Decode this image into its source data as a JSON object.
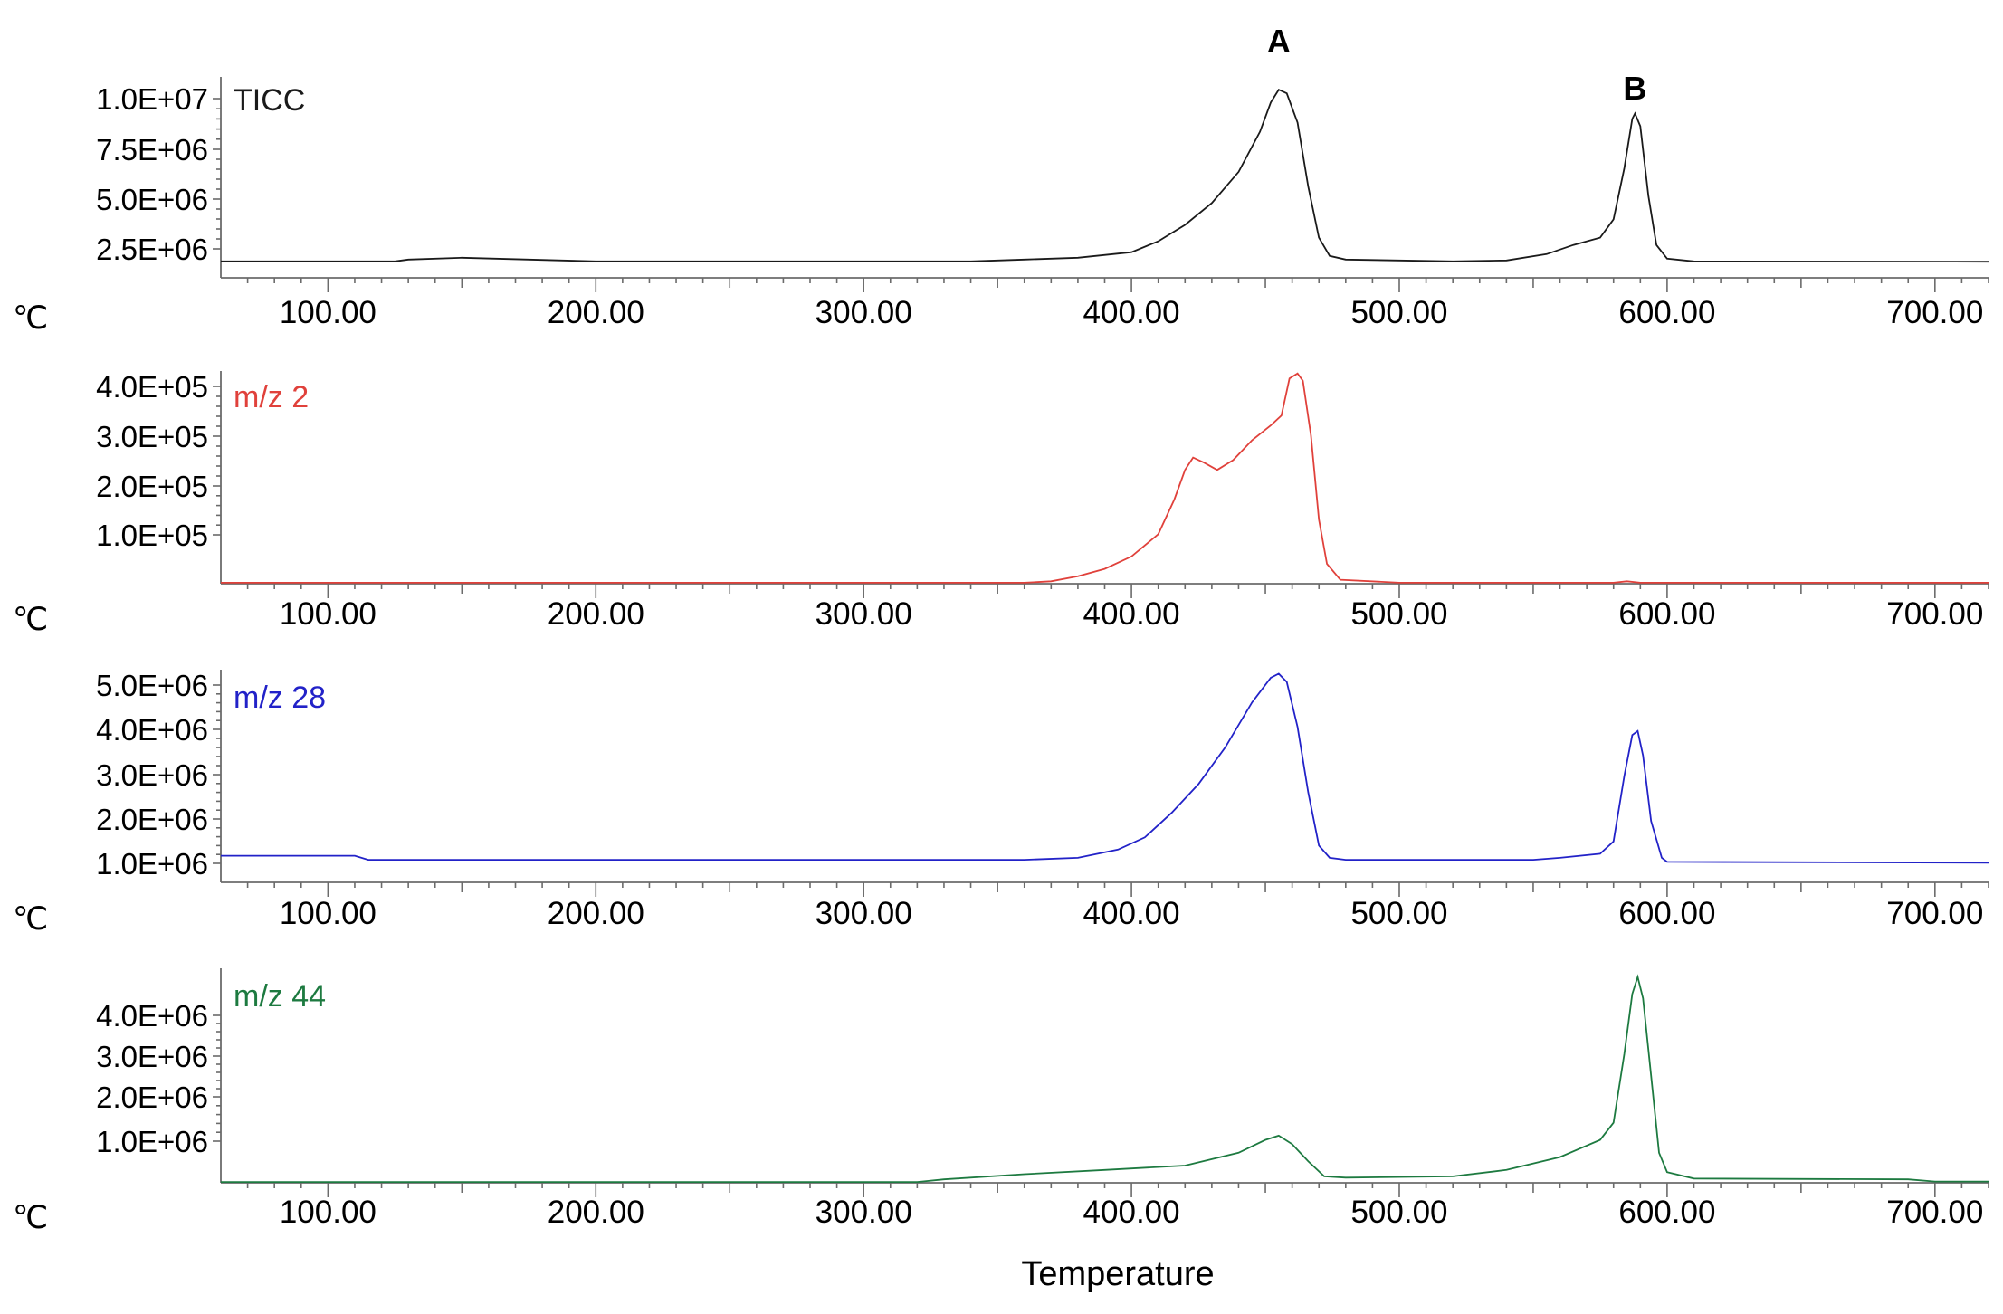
{
  "chart_data": {
    "type": "line",
    "xlabel": "Temperature",
    "x_unit": "℃",
    "xlim": [
      60,
      720
    ],
    "x_ticks": [
      "100.00",
      "200.00",
      "300.00",
      "400.00",
      "500.00",
      "600.00",
      "700.00"
    ],
    "peak_annotations": [
      {
        "label": "A",
        "x": 455
      },
      {
        "label": "B",
        "x": 588
      }
    ],
    "panels": [
      {
        "label": "TICC",
        "color": "#1a1a1a",
        "ylim": [
          0,
          11000000
        ],
        "y_ticks": [
          "1.0E+07",
          "7.5E+06",
          "5.0E+06",
          "2.5E+06"
        ],
        "points": [
          [
            60,
            900000
          ],
          [
            125,
            900000
          ],
          [
            130,
            1000000
          ],
          [
            150,
            1100000
          ],
          [
            175,
            1000000
          ],
          [
            200,
            900000
          ],
          [
            340,
            900000
          ],
          [
            360,
            1000000
          ],
          [
            380,
            1100000
          ],
          [
            400,
            1400000
          ],
          [
            410,
            2000000
          ],
          [
            420,
            2900000
          ],
          [
            430,
            4100000
          ],
          [
            440,
            5800000
          ],
          [
            448,
            8000000
          ],
          [
            452,
            9600000
          ],
          [
            455,
            10300000
          ],
          [
            458,
            10100000
          ],
          [
            462,
            8500000
          ],
          [
            466,
            5000000
          ],
          [
            470,
            2200000
          ],
          [
            474,
            1200000
          ],
          [
            480,
            1000000
          ],
          [
            520,
            900000
          ],
          [
            540,
            950000
          ],
          [
            555,
            1300000
          ],
          [
            565,
            1800000
          ],
          [
            575,
            2200000
          ],
          [
            580,
            3200000
          ],
          [
            584,
            6000000
          ],
          [
            587,
            8700000
          ],
          [
            588,
            9000000
          ],
          [
            590,
            8300000
          ],
          [
            593,
            4500000
          ],
          [
            596,
            1800000
          ],
          [
            600,
            1050000
          ],
          [
            610,
            900000
          ],
          [
            720,
            880000
          ]
        ]
      },
      {
        "label": "m/z 2",
        "color": "#e0413b",
        "ylim": [
          0,
          430000
        ],
        "y_ticks": [
          "4.0E+05",
          "3.0E+05",
          "2.0E+05",
          "1.0E+05"
        ],
        "points": [
          [
            60,
            2000
          ],
          [
            360,
            2000
          ],
          [
            370,
            5000
          ],
          [
            380,
            15000
          ],
          [
            390,
            30000
          ],
          [
            400,
            55000
          ],
          [
            410,
            100000
          ],
          [
            416,
            170000
          ],
          [
            420,
            230000
          ],
          [
            423,
            255000
          ],
          [
            427,
            245000
          ],
          [
            432,
            230000
          ],
          [
            438,
            250000
          ],
          [
            445,
            290000
          ],
          [
            452,
            320000
          ],
          [
            456,
            340000
          ],
          [
            459,
            415000
          ],
          [
            462,
            425000
          ],
          [
            464,
            410000
          ],
          [
            467,
            300000
          ],
          [
            470,
            130000
          ],
          [
            473,
            40000
          ],
          [
            478,
            8000
          ],
          [
            500,
            2000
          ],
          [
            580,
            2000
          ],
          [
            585,
            5000
          ],
          [
            590,
            2000
          ],
          [
            720,
            2000
          ]
        ]
      },
      {
        "label": "m/z 28",
        "color": "#2222c8",
        "ylim": [
          0,
          5200000
        ],
        "y_ticks": [
          "5.0E+06",
          "4.0E+06",
          "3.0E+06",
          "2.0E+06",
          "1.0E+06"
        ],
        "points": [
          [
            60,
            650000
          ],
          [
            110,
            650000
          ],
          [
            115,
            550000
          ],
          [
            360,
            550000
          ],
          [
            380,
            600000
          ],
          [
            395,
            800000
          ],
          [
            405,
            1100000
          ],
          [
            415,
            1700000
          ],
          [
            425,
            2400000
          ],
          [
            435,
            3300000
          ],
          [
            445,
            4400000
          ],
          [
            452,
            5000000
          ],
          [
            455,
            5100000
          ],
          [
            458,
            4900000
          ],
          [
            462,
            3800000
          ],
          [
            466,
            2200000
          ],
          [
            470,
            900000
          ],
          [
            474,
            600000
          ],
          [
            480,
            550000
          ],
          [
            550,
            550000
          ],
          [
            560,
            600000
          ],
          [
            575,
            700000
          ],
          [
            580,
            1000000
          ],
          [
            584,
            2600000
          ],
          [
            587,
            3600000
          ],
          [
            589,
            3700000
          ],
          [
            591,
            3100000
          ],
          [
            594,
            1500000
          ],
          [
            598,
            600000
          ],
          [
            600,
            500000
          ],
          [
            720,
            480000
          ]
        ]
      },
      {
        "label": "m/z 44",
        "color": "#1d7a40",
        "ylim": [
          0,
          5000000
        ],
        "y_ticks": [
          "4.0E+06",
          "3.0E+06",
          "2.0E+06",
          "1.0E+06"
        ],
        "points": [
          [
            60,
            20000
          ],
          [
            320,
            20000
          ],
          [
            330,
            80000
          ],
          [
            360,
            200000
          ],
          [
            390,
            300000
          ],
          [
            420,
            400000
          ],
          [
            440,
            700000
          ],
          [
            450,
            1000000
          ],
          [
            455,
            1100000
          ],
          [
            460,
            900000
          ],
          [
            466,
            500000
          ],
          [
            472,
            150000
          ],
          [
            480,
            120000
          ],
          [
            520,
            150000
          ],
          [
            540,
            300000
          ],
          [
            560,
            600000
          ],
          [
            575,
            1000000
          ],
          [
            580,
            1400000
          ],
          [
            584,
            3000000
          ],
          [
            587,
            4400000
          ],
          [
            589,
            4800000
          ],
          [
            591,
            4300000
          ],
          [
            594,
            2500000
          ],
          [
            597,
            700000
          ],
          [
            600,
            250000
          ],
          [
            610,
            100000
          ],
          [
            690,
            80000
          ],
          [
            700,
            30000
          ],
          [
            720,
            30000
          ]
        ]
      }
    ]
  }
}
